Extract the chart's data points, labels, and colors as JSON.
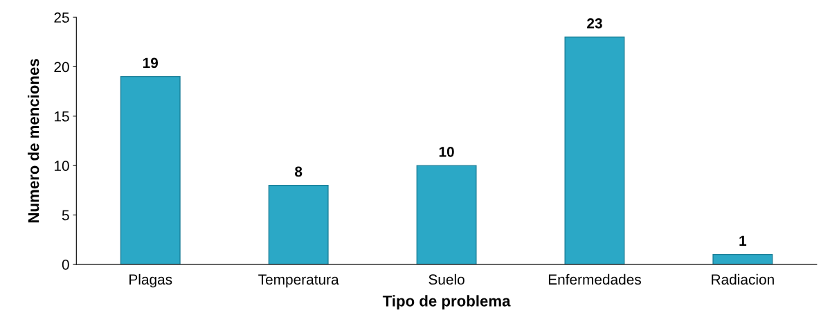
{
  "chart_data": {
    "type": "bar",
    "xlabel": "Tipo de problema",
    "ylabel": "Numero de menciones",
    "categories": [
      "Plagas",
      "Temperatura",
      "Suelo",
      "Enfermedades",
      "Radiacion"
    ],
    "values": [
      19,
      8,
      10,
      23,
      1
    ],
    "color": "#2ba8c6",
    "ylim": [
      0,
      25
    ],
    "yticks": [
      0,
      5,
      10,
      15,
      20,
      25
    ],
    "grid": false,
    "data_labels": true,
    "legend": false
  }
}
